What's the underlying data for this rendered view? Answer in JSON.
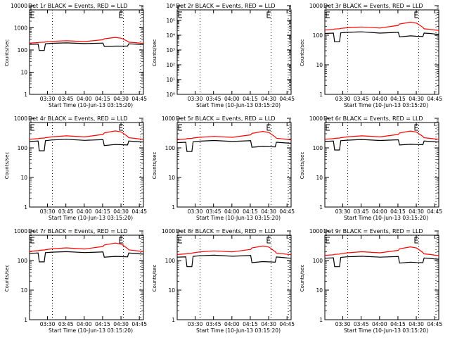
{
  "figure": {
    "x_tick_labels": [
      "03:30",
      "03:45",
      "04:00",
      "04:15",
      "04:30",
      "04:45"
    ],
    "xlabel": "Start Time (10-Jun-13 03:15:20)",
    "ylabel": "Counts/sec",
    "colors": {
      "events": "#000000",
      "lld": "#ff0000",
      "frame": "#000000"
    },
    "dotted_marker_times": [
      "03:34",
      "04:32"
    ]
  },
  "chart_data": [
    {
      "type": "line",
      "title": "Det 1r BLACK = Events, RED = LLD",
      "yscale": "log",
      "ylim": [
        1,
        10000
      ],
      "y_tick_labels": [
        "1",
        "10",
        "100",
        "1000",
        "10000"
      ],
      "x_minutes": [
        0,
        7,
        8,
        12,
        13,
        18,
        30,
        45,
        60,
        61,
        70,
        75,
        80,
        81,
        86,
        90,
        93
      ],
      "series": [
        {
          "name": "Events",
          "values": [
            180,
            185,
            95,
            95,
            190,
            200,
            210,
            195,
            205,
            145,
            150,
            150,
            150,
            190,
            185,
            180,
            178
          ]
        },
        {
          "name": "LLD",
          "values": [
            205,
            215,
            220,
            225,
            230,
            245,
            260,
            240,
            290,
            320,
            370,
            340,
            250,
            225,
            215,
            205,
            200
          ]
        }
      ]
    },
    {
      "type": "line",
      "title": "Det 2r BLACK = Events, RED = LLD",
      "yscale": "log",
      "ylim": [
        1,
        1000000
      ],
      "y_tick_labels": [
        "10⁰",
        "10¹",
        "10²",
        "10³",
        "10⁴",
        "10⁵",
        "10⁶"
      ],
      "x_minutes": [],
      "series": []
    },
    {
      "type": "line",
      "title": "Det 3r BLACK = Events, RED = LLD",
      "yscale": "log",
      "ylim": [
        1,
        1000
      ],
      "y_tick_labels": [
        "1",
        "10",
        "100",
        "1000"
      ],
      "x_minutes": [
        0,
        7,
        8,
        12,
        13,
        18,
        30,
        45,
        60,
        61,
        70,
        75,
        80,
        81,
        86,
        90,
        93
      ],
      "series": [
        {
          "name": "Events",
          "values": [
            115,
            118,
            60,
            60,
            120,
            125,
            130,
            118,
            125,
            88,
            95,
            92,
            90,
            118,
            115,
            110,
            108
          ]
        },
        {
          "name": "LLD",
          "values": [
            150,
            158,
            162,
            166,
            170,
            178,
            190,
            175,
            215,
            240,
            275,
            255,
            185,
            165,
            158,
            150,
            146
          ]
        }
      ]
    },
    {
      "type": "line",
      "title": "Det 4r BLACK = Events, RED = LLD",
      "yscale": "log",
      "ylim": [
        1,
        1000
      ],
      "y_tick_labels": [
        "1",
        "10",
        "100",
        "1000"
      ],
      "x_minutes": [
        0,
        7,
        8,
        12,
        13,
        18,
        30,
        45,
        60,
        61,
        70,
        75,
        80,
        81,
        86,
        90,
        93
      ],
      "series": [
        {
          "name": "Events",
          "values": [
            165,
            170,
            80,
            80,
            175,
            185,
            195,
            180,
            190,
            120,
            130,
            128,
            125,
            170,
            165,
            160,
            158
          ]
        },
        {
          "name": "LLD",
          "values": [
            195,
            205,
            210,
            215,
            220,
            235,
            255,
            235,
            285,
            320,
            375,
            345,
            245,
            220,
            210,
            200,
            195
          ]
        }
      ]
    },
    {
      "type": "line",
      "title": "Det 5r BLACK = Events, RED = LLD",
      "yscale": "log",
      "ylim": [
        1,
        1000
      ],
      "y_tick_labels": [
        "1",
        "10",
        "100",
        "1000"
      ],
      "x_minutes": [
        0,
        7,
        8,
        12,
        13,
        18,
        30,
        45,
        60,
        61,
        70,
        75,
        80,
        81,
        86,
        90,
        93
      ],
      "series": [
        {
          "name": "Events",
          "values": [
            150,
            155,
            75,
            75,
            160,
            168,
            178,
            165,
            175,
            105,
            112,
            110,
            108,
            155,
            150,
            146,
            143
          ]
        },
        {
          "name": "LLD",
          "values": [
            190,
            198,
            205,
            210,
            215,
            228,
            245,
            228,
            275,
            310,
            360,
            330,
            235,
            212,
            202,
            193,
            188
          ]
        }
      ]
    },
    {
      "type": "line",
      "title": "Det 6r BLACK = Events, RED = LLD",
      "yscale": "log",
      "ylim": [
        1,
        1000
      ],
      "y_tick_labels": [
        "1",
        "10",
        "100",
        "1000"
      ],
      "x_minutes": [
        0,
        7,
        8,
        12,
        13,
        18,
        30,
        45,
        60,
        61,
        70,
        75,
        80,
        81,
        86,
        90,
        93
      ],
      "series": [
        {
          "name": "Events",
          "values": [
            165,
            170,
            85,
            85,
            175,
            182,
            192,
            178,
            188,
            125,
            132,
            130,
            128,
            170,
            165,
            160,
            158
          ]
        },
        {
          "name": "LLD",
          "values": [
            195,
            205,
            210,
            215,
            220,
            235,
            255,
            235,
            285,
            320,
            370,
            340,
            245,
            220,
            210,
            200,
            196
          ]
        }
      ]
    },
    {
      "type": "line",
      "title": "Det 7r BLACK = Events, RED = LLD",
      "yscale": "log",
      "ylim": [
        1,
        1000
      ],
      "y_tick_labels": [
        "1",
        "10",
        "100",
        "1000"
      ],
      "x_minutes": [
        0,
        7,
        8,
        12,
        13,
        18,
        30,
        45,
        60,
        61,
        70,
        75,
        80,
        81,
        86,
        90,
        93
      ],
      "series": [
        {
          "name": "Events",
          "values": [
            175,
            180,
            90,
            90,
            185,
            192,
            200,
            186,
            195,
            130,
            138,
            136,
            133,
            180,
            174,
            168,
            165
          ]
        },
        {
          "name": "LLD",
          "values": [
            205,
            215,
            222,
            228,
            232,
            248,
            268,
            246,
            300,
            335,
            390,
            360,
            255,
            230,
            218,
            208,
            203
          ]
        }
      ]
    },
    {
      "type": "line",
      "title": "Det 8r BLACK = Events, RED = LLD",
      "yscale": "log",
      "ylim": [
        1,
        1000
      ],
      "y_tick_labels": [
        "1",
        "10",
        "100",
        "1000"
      ],
      "x_minutes": [
        0,
        7,
        8,
        12,
        13,
        18,
        30,
        45,
        60,
        61,
        70,
        75,
        80,
        81,
        86,
        90,
        93
      ],
      "series": [
        {
          "name": "Events",
          "values": [
            130,
            133,
            62,
            62,
            138,
            145,
            152,
            140,
            148,
            85,
            92,
            90,
            88,
            132,
            127,
            122,
            120
          ]
        },
        {
          "name": "LLD",
          "values": [
            160,
            168,
            172,
            177,
            182,
            195,
            212,
            196,
            238,
            268,
            310,
            285,
            200,
            178,
            170,
            162,
            158
          ]
        }
      ]
    },
    {
      "type": "line",
      "title": "Det 9r BLACK = Events, RED = LLD",
      "yscale": "log",
      "ylim": [
        1,
        1000
      ],
      "y_tick_labels": [
        "1",
        "10",
        "100",
        "1000"
      ],
      "x_minutes": [
        0,
        7,
        8,
        12,
        13,
        18,
        30,
        45,
        60,
        61,
        70,
        75,
        80,
        81,
        86,
        90,
        93
      ],
      "series": [
        {
          "name": "Events",
          "values": [
            120,
            124,
            62,
            62,
            128,
            134,
            140,
            130,
            137,
            82,
            88,
            86,
            85,
            122,
            118,
            113,
            111
          ]
        },
        {
          "name": "LLD",
          "values": [
            150,
            157,
            162,
            166,
            170,
            182,
            198,
            183,
            222,
            250,
            290,
            266,
            188,
            168,
            160,
            152,
            148
          ]
        }
      ]
    }
  ]
}
